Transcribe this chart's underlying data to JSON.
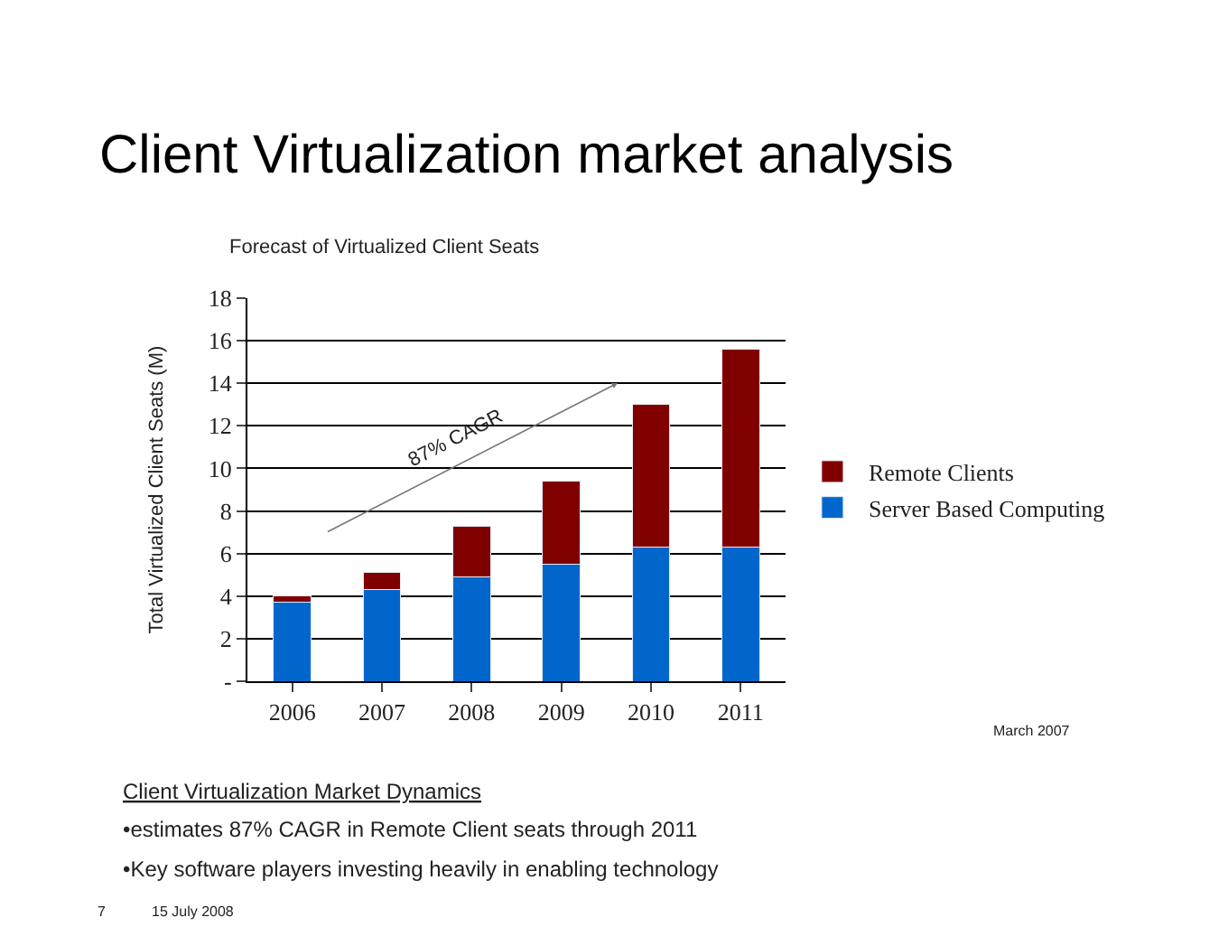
{
  "chart_data": {
    "type": "bar",
    "stacked": true,
    "title": "Client Virtualization market analysis",
    "subtitle": "Forecast of Virtualized Client Seats",
    "ylabel": "Total Virtualized Client Seats (M)",
    "categories": [
      "2006",
      "2007",
      "2008",
      "2009",
      "2010",
      "2011"
    ],
    "series": [
      {
        "name": "Server Based Computing",
        "color": "#0066cc",
        "values": [
          3.7,
          4.3,
          4.9,
          5.5,
          6.3,
          6.3
        ]
      },
      {
        "name": "Remote Clients",
        "color": "#800000",
        "values": [
          0.3,
          0.8,
          2.4,
          3.9,
          6.7,
          9.3
        ]
      }
    ],
    "ylim": [
      0,
      18
    ],
    "yticks": [
      {
        "value": 0,
        "label": "-"
      },
      2,
      4,
      6,
      8,
      10,
      12,
      14,
      16,
      18
    ],
    "grid": "y",
    "legend": "right",
    "annotations": [
      "87% CAGR",
      "March 2007",
      "Client Virtualization Market Dynamics",
      "•estimates 87% CAGR in Remote Client seats through 2011",
      "•Key software players investing heavily in enabling technology",
      "7",
      "15 July 2008"
    ]
  }
}
